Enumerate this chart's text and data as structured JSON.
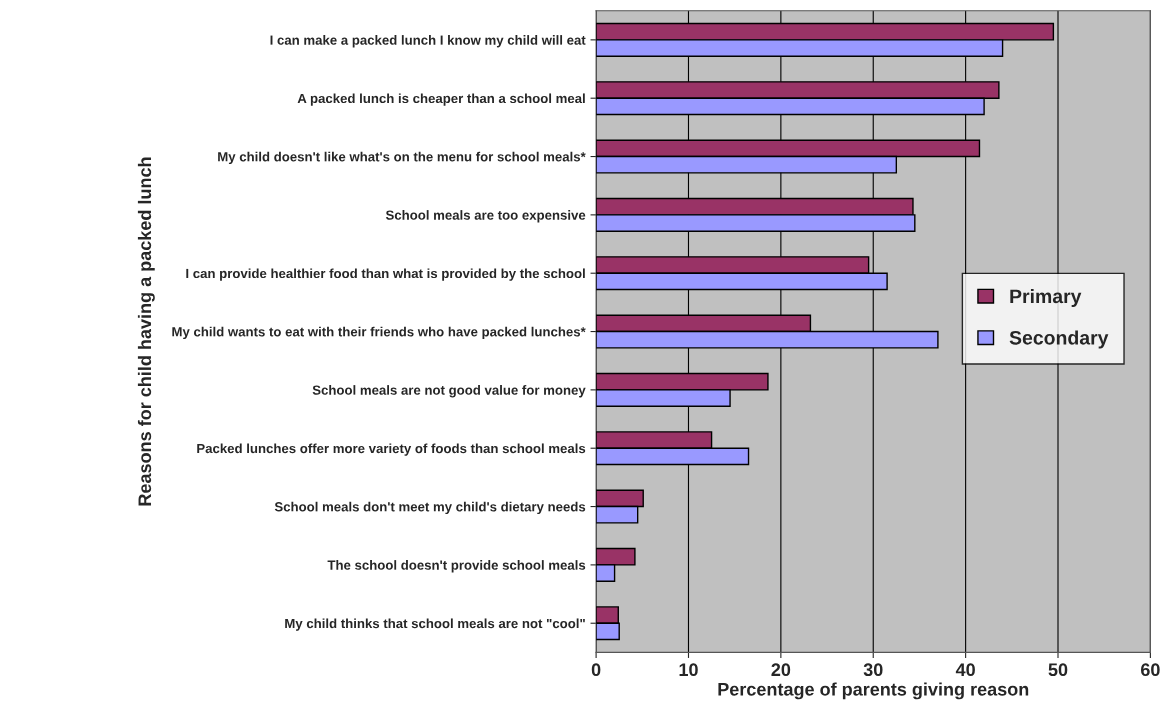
{
  "chart_data": {
    "type": "bar",
    "orientation": "horizontal",
    "xlabel": "Percentage of parents giving reason",
    "ylabel": "Reasons for child having a packed lunch",
    "categories": [
      "I can make a packed lunch I know my child will eat",
      "A packed lunch is cheaper than a school meal",
      "My child doesn't like what's on the menu for school meals*",
      "School meals are too expensive",
      "I can provide healthier food than what is provided by the school",
      "My child wants to eat with their friends who have packed lunches*",
      "School meals are not good value for money",
      "Packed lunches offer more variety of foods than school meals",
      "School meals don't meet my child's dietary needs",
      "The school doesn't provide school meals",
      "My child thinks that school meals are not \"cool\""
    ],
    "series": [
      {
        "name": "Primary",
        "color": "#993366",
        "values": [
          49.5,
          43.6,
          41.5,
          34.3,
          29.5,
          23.2,
          18.6,
          12.5,
          5.1,
          4.2,
          2.4
        ]
      },
      {
        "name": "Secondary",
        "color": "#9999ff",
        "values": [
          44.0,
          42.0,
          32.5,
          34.5,
          31.5,
          37.0,
          14.5,
          16.5,
          4.5,
          2.0,
          2.5
        ]
      }
    ],
    "xlim": [
      0,
      60
    ],
    "xticks": [
      0,
      10,
      20,
      30,
      40,
      50,
      60
    ],
    "grid": "x",
    "legend": "right"
  }
}
